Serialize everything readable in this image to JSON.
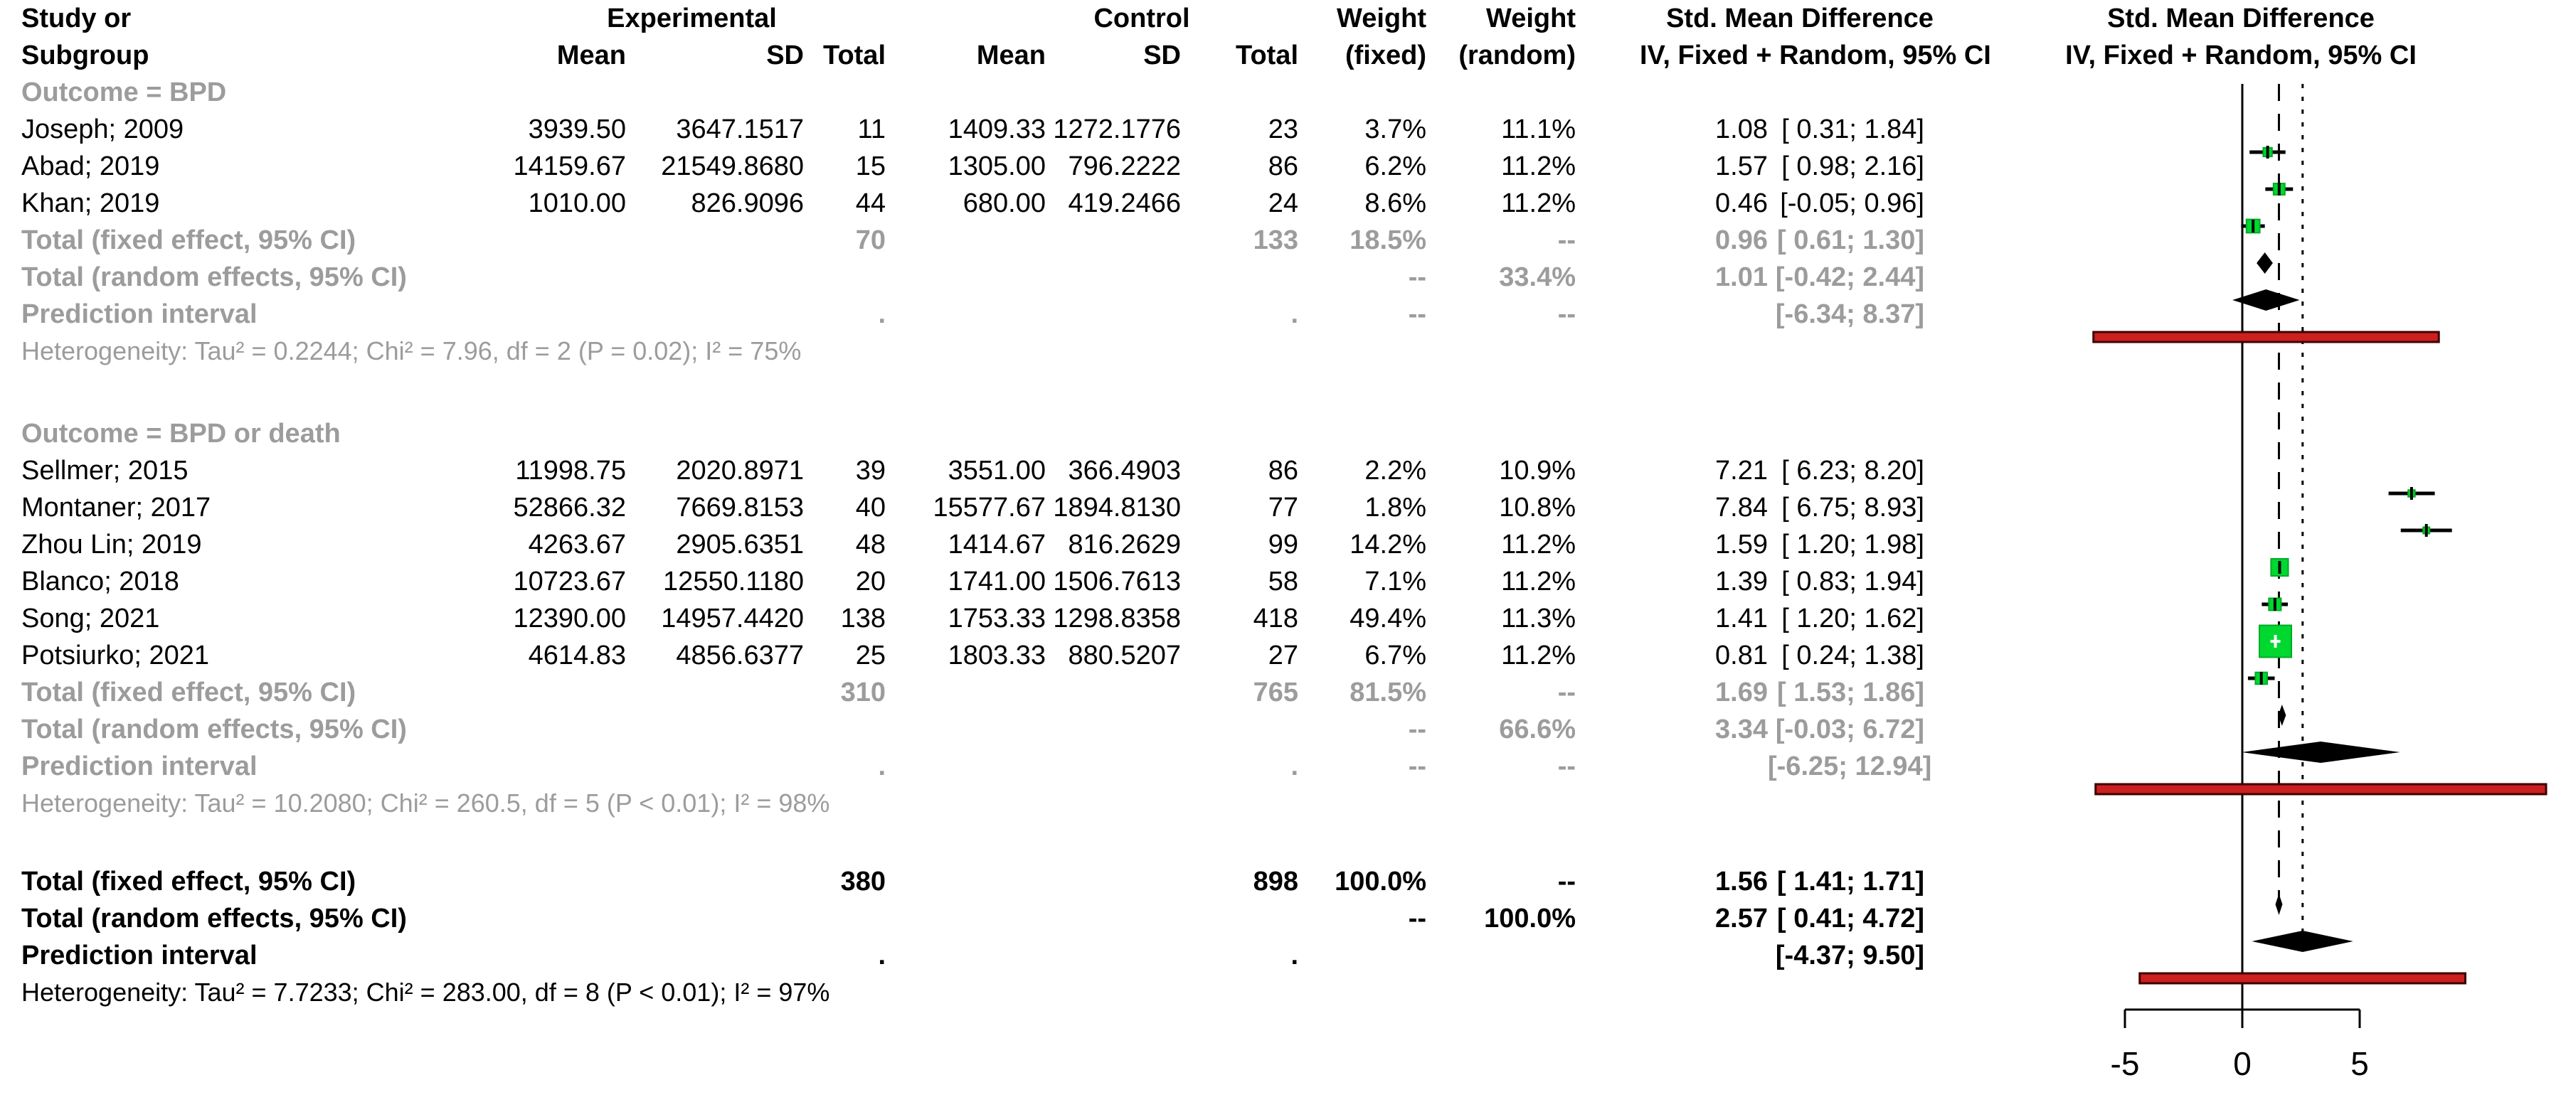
{
  "header": {
    "study_l1": "Study or",
    "study_l2": "Subgroup",
    "experimental": "Experimental",
    "control": "Control",
    "mean": "Mean",
    "sd": "SD",
    "total": "Total",
    "weight": "Weight",
    "fixed": "(fixed)",
    "random": "(random)",
    "smd_l1": "Std. Mean Difference",
    "smd_l2": "IV, Fixed + Random, 95% CI",
    "plot_l1": "Std. Mean Difference",
    "plot_l2": "IV, Fixed + Random, 95% CI"
  },
  "chart_data": {
    "type": "forest",
    "effect_measure": "Std. Mean Difference",
    "x_axis": {
      "ticks": [
        -5,
        0,
        5
      ],
      "tick_labels": [
        "-5",
        "0",
        "5"
      ],
      "range": [
        -5,
        5
      ]
    },
    "ref_lines": [
      {
        "x": 0,
        "style": "solid"
      },
      {
        "x": 1.56,
        "style": "dashed"
      },
      {
        "x": 2.57,
        "style": "dotted"
      }
    ],
    "groups": [
      {
        "label": "Outcome = BPD",
        "studies": [
          {
            "study": "Joseph; 2009",
            "exp_mean": "3939.50",
            "exp_sd": "3647.1517",
            "exp_total": "11",
            "ctl_mean": "1409.33",
            "ctl_sd": "1272.1776",
            "ctl_total": "23",
            "w_fixed": "3.7%",
            "w_random": "11.1%",
            "est_text": "1.08",
            "ci_text": "[ 0.31; 1.84]",
            "est": 1.08,
            "lo": 0.31,
            "hi": 1.84,
            "weight": 3.7
          },
          {
            "study": "Abad; 2019",
            "exp_mean": "14159.67",
            "exp_sd": "21549.8680",
            "exp_total": "15",
            "ctl_mean": "1305.00",
            "ctl_sd": "796.2222",
            "ctl_total": "86",
            "w_fixed": "6.2%",
            "w_random": "11.2%",
            "est_text": "1.57",
            "ci_text": "[ 0.98; 2.16]",
            "est": 1.57,
            "lo": 0.98,
            "hi": 2.16,
            "weight": 6.2
          },
          {
            "study": "Khan; 2019",
            "exp_mean": "1010.00",
            "exp_sd": "826.9096",
            "exp_total": "44",
            "ctl_mean": "680.00",
            "ctl_sd": "419.2466",
            "ctl_total": "24",
            "w_fixed": "8.6%",
            "w_random": "11.2%",
            "est_text": "0.46",
            "ci_text": "[-0.05; 0.96]",
            "est": 0.46,
            "lo": -0.05,
            "hi": 0.96,
            "weight": 8.6
          }
        ],
        "total_fixed": {
          "label": "Total (fixed effect, 95% CI)",
          "exp_total": "70",
          "ctl_total": "133",
          "w_fixed": "18.5%",
          "w_random": "--",
          "est_text": "0.96",
          "ci_text": "[ 0.61; 1.30]",
          "est": 0.96,
          "lo": 0.61,
          "hi": 1.3
        },
        "total_random": {
          "label": "Total (random effects, 95% CI)",
          "w_fixed": "--",
          "w_random": "33.4%",
          "est_text": "1.01",
          "ci_text": "[-0.42; 2.44]",
          "est": 1.01,
          "lo": -0.42,
          "hi": 2.44
        },
        "prediction": {
          "label": "Prediction interval",
          "exp_total": ".",
          "ctl_total": ".",
          "w_fixed": "--",
          "w_random": "--",
          "ci_text": "[-6.34; 8.37]",
          "lo": -6.34,
          "hi": 8.37
        },
        "heterogeneity": "Heterogeneity: Tau² = 0.2244; Chi² = 7.96, df = 2 (P = 0.02); I² = 75%"
      },
      {
        "label": "Outcome = BPD or death",
        "studies": [
          {
            "study": "Sellmer; 2015",
            "exp_mean": "11998.75",
            "exp_sd": "2020.8971",
            "exp_total": "39",
            "ctl_mean": "3551.00",
            "ctl_sd": "366.4903",
            "ctl_total": "86",
            "w_fixed": "2.2%",
            "w_random": "10.9%",
            "est_text": "7.21",
            "ci_text": "[ 6.23; 8.20]",
            "est": 7.21,
            "lo": 6.23,
            "hi": 8.2,
            "weight": 2.2
          },
          {
            "study": "Montaner; 2017",
            "exp_mean": "52866.32",
            "exp_sd": "7669.8153",
            "exp_total": "40",
            "ctl_mean": "15577.67",
            "ctl_sd": "1894.8130",
            "ctl_total": "77",
            "w_fixed": "1.8%",
            "w_random": "10.8%",
            "est_text": "7.84",
            "ci_text": "[ 6.75; 8.93]",
            "est": 7.84,
            "lo": 6.75,
            "hi": 8.93,
            "weight": 1.8
          },
          {
            "study": "Zhou Lin; 2019",
            "exp_mean": "4263.67",
            "exp_sd": "2905.6351",
            "exp_total": "48",
            "ctl_mean": "1414.67",
            "ctl_sd": "816.2629",
            "ctl_total": "99",
            "w_fixed": "14.2%",
            "w_random": "11.2%",
            "est_text": "1.59",
            "ci_text": "[ 1.20; 1.98]",
            "est": 1.59,
            "lo": 1.2,
            "hi": 1.98,
            "weight": 14.2
          },
          {
            "study": "Blanco; 2018",
            "exp_mean": "10723.67",
            "exp_sd": "12550.1180",
            "exp_total": "20",
            "ctl_mean": "1741.00",
            "ctl_sd": "1506.7613",
            "ctl_total": "58",
            "w_fixed": "7.1%",
            "w_random": "11.2%",
            "est_text": "1.39",
            "ci_text": "[ 0.83; 1.94]",
            "est": 1.39,
            "lo": 0.83,
            "hi": 1.94,
            "weight": 7.1
          },
          {
            "study": "Song; 2021",
            "exp_mean": "12390.00",
            "exp_sd": "14957.4420",
            "exp_total": "138",
            "ctl_mean": "1753.33",
            "ctl_sd": "1298.8358",
            "ctl_total": "418",
            "w_fixed": "49.4%",
            "w_random": "11.3%",
            "est_text": "1.41",
            "ci_text": "[ 1.20; 1.62]",
            "est": 1.41,
            "lo": 1.2,
            "hi": 1.62,
            "weight": 49.4
          },
          {
            "study": "Potsiurko; 2021",
            "exp_mean": "4614.83",
            "exp_sd": "4856.6377",
            "exp_total": "25",
            "ctl_mean": "1803.33",
            "ctl_sd": "880.5207",
            "ctl_total": "27",
            "w_fixed": "6.7%",
            "w_random": "11.2%",
            "est_text": "0.81",
            "ci_text": "[ 0.24; 1.38]",
            "est": 0.81,
            "lo": 0.24,
            "hi": 1.38,
            "weight": 6.7
          }
        ],
        "total_fixed": {
          "label": "Total (fixed effect, 95% CI)",
          "exp_total": "310",
          "ctl_total": "765",
          "w_fixed": "81.5%",
          "w_random": "--",
          "est_text": "1.69",
          "ci_text": "[ 1.53; 1.86]",
          "est": 1.69,
          "lo": 1.53,
          "hi": 1.86
        },
        "total_random": {
          "label": "Total (random effects, 95% CI)",
          "w_fixed": "--",
          "w_random": "66.6%",
          "est_text": "3.34",
          "ci_text": "[-0.03; 6.72]",
          "est": 3.34,
          "lo": -0.03,
          "hi": 6.72
        },
        "prediction": {
          "label": "Prediction interval",
          "exp_total": ".",
          "ctl_total": ".",
          "w_fixed": "--",
          "w_random": "--",
          "ci_text": "[-6.25; 12.94]",
          "lo": -6.25,
          "hi": 12.94
        },
        "heterogeneity": "Heterogeneity: Tau² = 10.2080; Chi² = 260.5, df = 5 (P < 0.01); I² = 98%"
      }
    ],
    "overall": {
      "total_fixed": {
        "label": "Total (fixed effect, 95% CI)",
        "exp_total": "380",
        "ctl_total": "898",
        "w_fixed": "100.0%",
        "w_random": "--",
        "est_text": "1.56",
        "ci_text": "[ 1.41; 1.71]",
        "est": 1.56,
        "lo": 1.41,
        "hi": 1.71
      },
      "total_random": {
        "label": "Total (random effects, 95% CI)",
        "w_fixed": "--",
        "w_random": "100.0%",
        "est_text": "2.57",
        "ci_text": "[ 0.41; 4.72]",
        "est": 2.57,
        "lo": 0.41,
        "hi": 4.72
      },
      "prediction": {
        "label": "Prediction interval",
        "exp_total": ".",
        "ctl_total": ".",
        "ci_text": "[-4.37; 9.50]",
        "lo": -4.37,
        "hi": 9.5
      },
      "heterogeneity": "Heterogeneity: Tau² = 7.7233; Chi² = 283.00, df = 8 (P < 0.01); I² = 97%"
    },
    "colors": {
      "square_fill": "#00d830",
      "square_stroke": "#00aa26",
      "diamond": "#000000",
      "prediction_fill": "#cc1f1f",
      "prediction_stroke": "#3d0000",
      "line": "#000000",
      "subtotal_text": "#9c9c9c"
    }
  }
}
